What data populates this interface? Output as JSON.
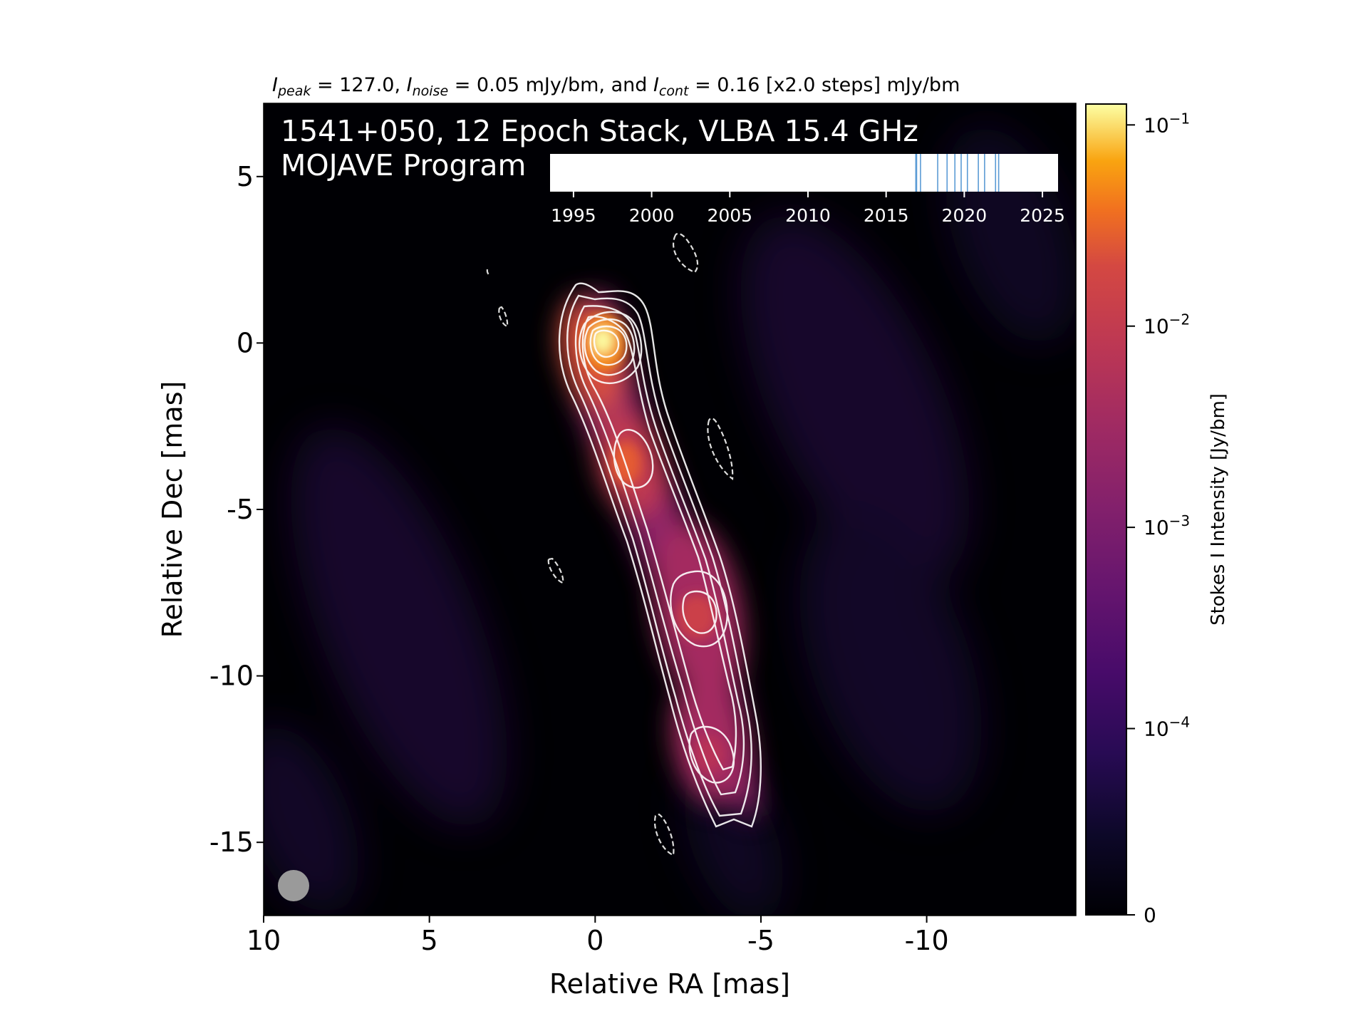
{
  "chart_data": {
    "type": "heatmap",
    "header": {
      "i_peak_symbol": "I",
      "i_peak_sub": "peak",
      "i_peak_value": " = 127.0, ",
      "i_noise_symbol": "I",
      "i_noise_sub": "noise",
      "i_noise_value": " = 0.05 mJy/bm, and ",
      "i_cont_symbol": "I",
      "i_cont_sub": "cont",
      "i_cont_value": " = 0.16 [x2.0 steps] mJy/bm"
    },
    "title_line1": "1541+050, 12 Epoch Stack, VLBA 15.4 GHz",
    "title_line2": "MOJAVE Program",
    "xlabel": "Relative RA [mas]",
    "ylabel": "Relative Dec [mas]",
    "xlim": [
      10,
      -14.5
    ],
    "ylim": [
      -17.2,
      7.2
    ],
    "x_ticks": [
      {
        "value": 10,
        "label": "10"
      },
      {
        "value": 5,
        "label": "5"
      },
      {
        "value": 0,
        "label": "0"
      },
      {
        "value": -5,
        "label": "-5"
      },
      {
        "value": -10,
        "label": "-10"
      }
    ],
    "y_ticks": [
      {
        "value": 5,
        "label": "5"
      },
      {
        "value": 0,
        "label": "0"
      },
      {
        "value": -5,
        "label": "-5"
      },
      {
        "value": -10,
        "label": "-10"
      },
      {
        "value": -15,
        "label": "-15"
      }
    ],
    "colorbar": {
      "label": "Stokes I Intensity [Jy/bm]",
      "scale": "log",
      "colormap": "inferno",
      "ticks": [
        {
          "value": 0.1,
          "base": "10",
          "exp": "−1"
        },
        {
          "value": 0.01,
          "base": "10",
          "exp": "−2"
        },
        {
          "value": 0.001,
          "base": "10",
          "exp": "−3"
        },
        {
          "value": 0.0001,
          "base": "10",
          "exp": "−4"
        },
        {
          "value": 0,
          "base": "0",
          "exp": ""
        }
      ]
    },
    "epoch_timeline": {
      "xlim": [
        1993.5,
        2026
      ],
      "ticks": [
        1995,
        2000,
        2005,
        2010,
        2015,
        2020,
        2025
      ],
      "epochs": [
        2016.9,
        2017.2,
        2018.3,
        2018.9,
        2019.4,
        2019.8,
        2020.2,
        2020.9,
        2021.3,
        2022.0,
        2022.2,
        2016.95
      ],
      "epoch_color": "#5b9bd5"
    },
    "components": [
      {
        "ra": 0.0,
        "dec": 0.0,
        "intensity": 0.127
      },
      {
        "ra": -1.2,
        "dec": -3.8,
        "intensity": 0.006
      },
      {
        "ra": -2.8,
        "dec": -8.5,
        "intensity": 0.003
      },
      {
        "ra": -3.3,
        "dec": -12.5,
        "intensity": 0.0015
      }
    ],
    "beam": {
      "ra": 9.3,
      "dec": -16.0,
      "major_mas": 0.9,
      "minor_mas": 0.9
    },
    "contour_color": "#ffffff",
    "negative_contour_style": "dashed"
  }
}
